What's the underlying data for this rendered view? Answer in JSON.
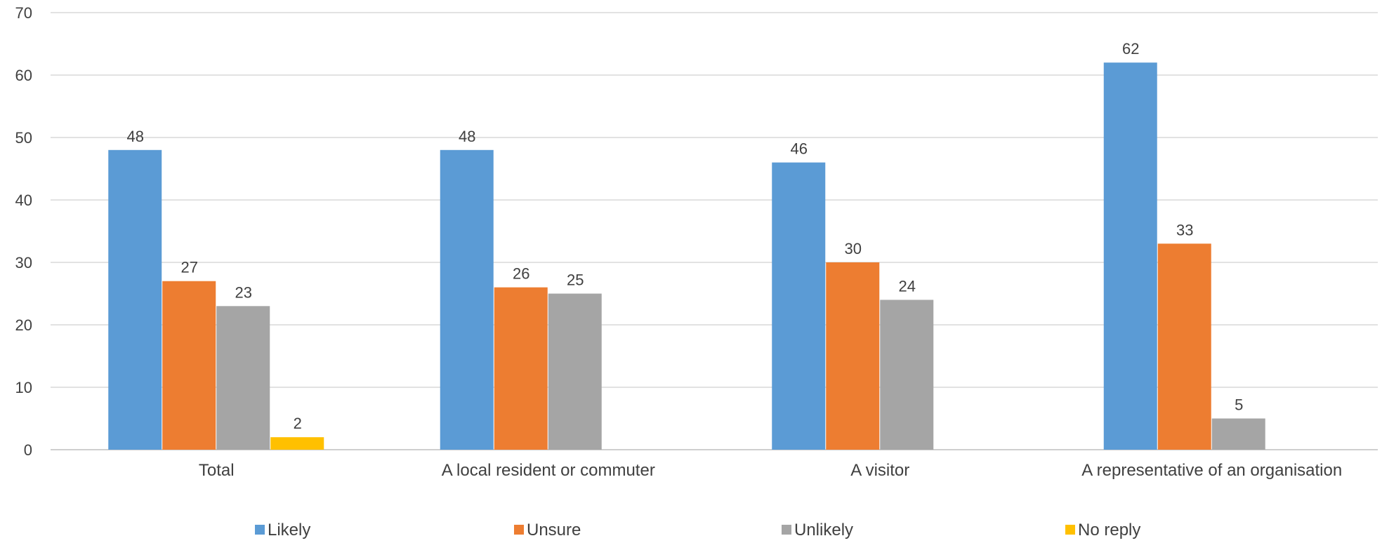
{
  "chart_data": {
    "type": "bar",
    "title": "",
    "xlabel": "",
    "ylabel": "",
    "ylim": [
      0,
      70
    ],
    "yticks": [
      0,
      10,
      20,
      30,
      40,
      50,
      60,
      70
    ],
    "grid": true,
    "legend_position": "bottom",
    "categories": [
      "Total",
      "A local resident or commuter",
      "A visitor",
      "A representative of an organisation"
    ],
    "series": [
      {
        "name": "Likely",
        "color": "#5B9BD5",
        "values": [
          48,
          48,
          46,
          62
        ]
      },
      {
        "name": "Unsure",
        "color": "#ED7D31",
        "values": [
          27,
          26,
          30,
          33
        ]
      },
      {
        "name": "Unlikely",
        "color": "#A5A5A5",
        "values": [
          23,
          25,
          24,
          5
        ]
      },
      {
        "name": "No reply",
        "color": "#FFC000",
        "values": [
          2,
          null,
          null,
          null
        ]
      }
    ]
  }
}
